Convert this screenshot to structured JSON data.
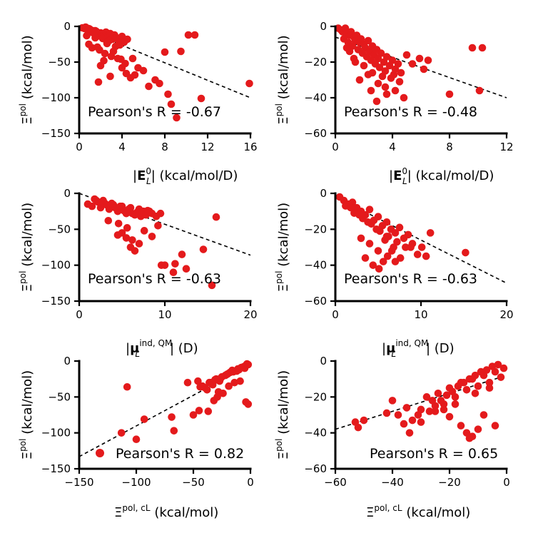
{
  "figure": {
    "ylabel": "Ξ^pol (kcal/mol)"
  },
  "chart_data": [
    {
      "type": "scatter",
      "title": "",
      "xlabel": "|E_L^0| (kcal/mol/D)",
      "ylabel": "Ξ^pol (kcal/mol)",
      "xlim": [
        0,
        16
      ],
      "ylim": [
        -150,
        0
      ],
      "xticks": [
        0,
        4,
        8,
        12,
        16
      ],
      "yticks": [
        0,
        -50,
        -100,
        -150
      ],
      "annotation": "Pearson's R = -0.67",
      "fit": [
        [
          0,
          -2
        ],
        [
          16,
          -100
        ]
      ],
      "x": [
        0.3,
        0.5,
        0.6,
        0.8,
        1.0,
        1.1,
        1.3,
        1.4,
        1.6,
        1.8,
        2.0,
        2.1,
        2.3,
        2.5,
        2.7,
        2.9,
        3.1,
        3.3,
        3.5,
        3.7,
        4.0,
        4.2,
        4.5,
        0.9,
        1.5,
        2.2,
        2.8,
        3.4,
        1.2,
        1.9,
        2.6,
        3.2,
        3.8,
        0.7,
        2.4,
        3.0,
        1.7,
        2.0,
        5.0,
        5.5,
        6.0,
        7.5,
        8.0,
        9.5,
        10.2,
        10.8,
        15.9,
        8.3,
        8.6,
        9.1,
        11.4,
        4.3,
        4.4,
        2.9,
        3.6,
        1.8,
        2.3,
        6.5,
        7.1,
        4.8,
        4.0,
        5.2,
        0.9,
        2.6,
        1.5,
        3.9
      ],
      "y": [
        -2,
        -3,
        -1,
        -5,
        -4,
        -8,
        -6,
        -10,
        -7,
        -12,
        -9,
        -15,
        -11,
        -8,
        -14,
        -10,
        -18,
        -12,
        -16,
        -20,
        -14,
        -22,
        -18,
        -25,
        -6,
        -17,
        -20,
        -28,
        -30,
        -33,
        -22,
        -35,
        -26,
        -13,
        -38,
        -42,
        -29,
        -55,
        -45,
        -58,
        -62,
        -80,
        -36,
        -35,
        -12,
        -12,
        -80,
        -95,
        -109,
        -128,
        -101,
        -52,
        -66,
        -70,
        -45,
        -78,
        -48,
        -84,
        -75,
        -72,
        -58,
        -68,
        -3,
        -24,
        -16,
        -46
      ]
    },
    {
      "type": "scatter",
      "title": "",
      "xlabel": "|E_L^0| (kcal/mol/D)",
      "ylabel": "Ξ^pol (kcal/mol)",
      "xlim": [
        0,
        12
      ],
      "ylim": [
        -60,
        0
      ],
      "xticks": [
        0,
        4,
        8,
        12
      ],
      "yticks": [
        0,
        -20,
        -40,
        -60
      ],
      "annotation": "Pearson's R = -0.48",
      "fit": [
        [
          0,
          -6
        ],
        [
          12,
          -40
        ]
      ],
      "x": [
        0.2,
        0.4,
        0.5,
        0.7,
        0.8,
        1.0,
        1.1,
        1.3,
        1.4,
        1.5,
        1.7,
        1.8,
        2.0,
        2.1,
        2.3,
        2.4,
        2.6,
        2.7,
        2.9,
        3.0,
        3.2,
        3.4,
        3.6,
        3.8,
        4.0,
        4.2,
        4.4,
        4.6,
        0.6,
        0.9,
        1.2,
        1.6,
        1.9,
        2.2,
        2.5,
        2.8,
        3.1,
        3.5,
        1.0,
        1.3,
        2.0,
        2.6,
        3.3,
        0.8,
        1.4,
        2.3,
        3.9,
        4.5,
        5.0,
        5.4,
        5.9,
        6.2,
        6.5,
        3.0,
        3.5,
        4.2,
        2.5,
        1.7,
        8.0,
        9.6,
        10.3,
        10.1,
        4.8,
        3.6,
        2.9,
        4.1
      ],
      "y": [
        -1,
        -2,
        -3,
        -1,
        -4,
        -5,
        -3,
        -6,
        -8,
        -5,
        -9,
        -7,
        -10,
        -12,
        -8,
        -14,
        -11,
        -16,
        -13,
        -18,
        -15,
        -20,
        -17,
        -22,
        -19,
        -24,
        -21,
        -26,
        -7,
        -9,
        -11,
        -13,
        -15,
        -17,
        -19,
        -21,
        -23,
        -25,
        -14,
        -18,
        -22,
        -26,
        -28,
        -12,
        -20,
        -27,
        -29,
        -31,
        -16,
        -21,
        -18,
        -24,
        -19,
        -32,
        -34,
        -36,
        -36,
        -30,
        -38,
        -12,
        -12,
        -36,
        -40,
        -38,
        -42,
        -27
      ]
    },
    {
      "type": "scatter",
      "title": "",
      "xlabel": "|μ_L^ind,QM| (D)",
      "ylabel": "Ξ^pol (kcal/mol)",
      "xlim": [
        0,
        20
      ],
      "ylim": [
        -150,
        0
      ],
      "xticks": [
        0,
        10,
        20
      ],
      "yticks": [
        0,
        -50,
        -100,
        -150
      ],
      "annotation": "Pearson's R = -0.63",
      "fit": [
        [
          0,
          0
        ],
        [
          20,
          -86
        ]
      ],
      "x": [
        1.0,
        1.5,
        2.0,
        2.5,
        3.0,
        3.5,
        4.0,
        4.5,
        5.0,
        5.5,
        6.0,
        6.5,
        7.0,
        7.5,
        8.0,
        8.5,
        9.0,
        9.5,
        2.2,
        3.2,
        4.2,
        5.2,
        6.2,
        7.2,
        8.2,
        1.8,
        2.8,
        3.8,
        4.8,
        5.8,
        6.8,
        7.8,
        4.5,
        5.0,
        5.5,
        6.0,
        6.5,
        7.0,
        8.5,
        9.2,
        10.0,
        11.0,
        12.0,
        12.5,
        14.5,
        15.5,
        16.0,
        11.2,
        9.6,
        6.2,
        5.6,
        3.4,
        4.6,
        7.6
      ],
      "y": [
        -15,
        -18,
        -10,
        -20,
        -14,
        -22,
        -16,
        -25,
        -18,
        -28,
        -20,
        -30,
        -22,
        -25,
        -24,
        -28,
        -32,
        -28,
        -12,
        -16,
        -20,
        -24,
        -28,
        -32,
        -25,
        -8,
        -10,
        -14,
        -18,
        -22,
        -26,
        -30,
        -58,
        -55,
        -62,
        -75,
        -80,
        -70,
        -60,
        -45,
        -100,
        -110,
        -85,
        -105,
        -78,
        -128,
        -33,
        -98,
        -100,
        -65,
        -48,
        -38,
        -42,
        -52
      ]
    },
    {
      "type": "scatter",
      "title": "",
      "xlabel": "|μ_L^ind,QM| (D)",
      "ylabel": "Ξ^pol (kcal/mol)",
      "xlim": [
        0,
        20
      ],
      "ylim": [
        -60,
        0
      ],
      "xticks": [
        0,
        10,
        20
      ],
      "yticks": [
        0,
        -20,
        -40,
        -60
      ],
      "annotation": "Pearson's R = -0.63",
      "fit": [
        [
          0,
          -2
        ],
        [
          20,
          -50
        ]
      ],
      "x": [
        0.5,
        1.0,
        1.5,
        2.0,
        2.5,
        3.0,
        3.5,
        4.0,
        4.5,
        5.0,
        5.5,
        6.0,
        6.5,
        7.0,
        7.5,
        8.0,
        8.5,
        9.0,
        1.2,
        2.2,
        3.2,
        4.2,
        5.2,
        6.2,
        7.2,
        8.2,
        1.8,
        2.8,
        3.8,
        4.8,
        5.8,
        6.8,
        4.4,
        5.1,
        5.6,
        6.1,
        6.6,
        7.6,
        9.6,
        10.1,
        10.6,
        11.1,
        15.2,
        3.0,
        4.0,
        5.0,
        6.0,
        3.5,
        7.0,
        8.8
      ],
      "y": [
        -2,
        -4,
        -6,
        -5,
        -8,
        -10,
        -12,
        -9,
        -15,
        -13,
        -18,
        -16,
        -20,
        -22,
        -19,
        -25,
        -23,
        -28,
        -7,
        -11,
        -14,
        -17,
        -21,
        -24,
        -27,
        -30,
        -8,
        -12,
        -16,
        -20,
        -26,
        -30,
        -40,
        -42,
        -38,
        -35,
        -32,
        -36,
        -34,
        -30,
        -35,
        -22,
        -33,
        -25,
        -28,
        -32,
        -24,
        -36,
        -38,
        -30
      ]
    },
    {
      "type": "scatter",
      "title": "",
      "xlabel": "Ξ^pol,cL (kcal/mol)",
      "ylabel": "Ξ^pol (kcal/mol)",
      "xlim": [
        -150,
        0
      ],
      "ylim": [
        -150,
        0
      ],
      "xticks": [
        -150,
        -100,
        -50,
        0
      ],
      "yticks": [
        0,
        -50,
        -100,
        -150
      ],
      "annotation": "Pearson's R = 0.82",
      "legend_marker": true,
      "fit": [
        [
          -150,
          -133
        ],
        [
          0,
          -5
        ]
      ],
      "x": [
        -113,
        -108,
        -100,
        -93,
        -67,
        -69,
        -45,
        -50,
        -32,
        -28,
        -40,
        -35,
        -30,
        -25,
        -20,
        -15,
        -10,
        -5,
        -2,
        -38,
        -33,
        -27,
        -22,
        -18,
        -12,
        -8,
        -4,
        -42,
        -36,
        -31,
        -26,
        -21,
        -16,
        -11,
        -6,
        -3,
        -24,
        -19,
        -14,
        -9,
        -37,
        -29,
        -44,
        -46,
        -55,
        -4,
        -2
      ],
      "y": [
        -100,
        -36,
        -109,
        -81,
        -97,
        -78,
        -69,
        -75,
        -55,
        -43,
        -37,
        -30,
        -25,
        -22,
        -18,
        -15,
        -12,
        -10,
        -5,
        -40,
        -33,
        -28,
        -20,
        -16,
        -14,
        -9,
        -6,
        -35,
        -30,
        -26,
        -24,
        -19,
        -13,
        -11,
        -8,
        -4,
        -45,
        -35,
        -30,
        -28,
        -70,
        -50,
        -36,
        -28,
        -30,
        -57,
        -60
      ]
    },
    {
      "type": "scatter",
      "title": "",
      "xlabel": "Ξ^pol,cL (kcal/mol)",
      "ylabel": "Ξ^pol (kcal/mol)",
      "xlim": [
        -60,
        0
      ],
      "ylim": [
        -60,
        0
      ],
      "xticks": [
        -60,
        -40,
        -20,
        0
      ],
      "yticks": [
        0,
        -20,
        -40,
        -60
      ],
      "annotation": "Pearson's R = 0.65",
      "fit": [
        [
          -60,
          -38
        ],
        [
          0,
          -8
        ]
      ],
      "x": [
        -53,
        -52,
        -50,
        -42,
        -40,
        -38,
        -35,
        -34,
        -30,
        -28,
        -26,
        -24,
        -22,
        -20,
        -18,
        -16,
        -14,
        -12,
        -10,
        -8,
        -6,
        -4,
        -2,
        -1,
        -36,
        -33,
        -31,
        -27,
        -25,
        -23,
        -21,
        -19,
        -17,
        -15,
        -13,
        -11,
        -9,
        -7,
        -5,
        -3,
        -14,
        -13,
        -16,
        -12,
        -10,
        -8,
        -4,
        -20,
        -25,
        -30,
        -22,
        -18,
        -11,
        -6
      ],
      "y": [
        -34,
        -37,
        -33,
        -29,
        -22,
        -30,
        -26,
        -40,
        -27,
        -20,
        -22,
        -18,
        -24,
        -15,
        -20,
        -12,
        -16,
        -10,
        -14,
        -8,
        -12,
        -6,
        -9,
        -4,
        -35,
        -33,
        -30,
        -28,
        -25,
        -22,
        -19,
        -17,
        -14,
        -12,
        -10,
        -8,
        -6,
        -5,
        -3,
        -2,
        -40,
        -43,
        -36,
        -42,
        -38,
        -30,
        -36,
        -31,
        -28,
        -34,
        -27,
        -24,
        -18,
        -15
      ]
    }
  ]
}
